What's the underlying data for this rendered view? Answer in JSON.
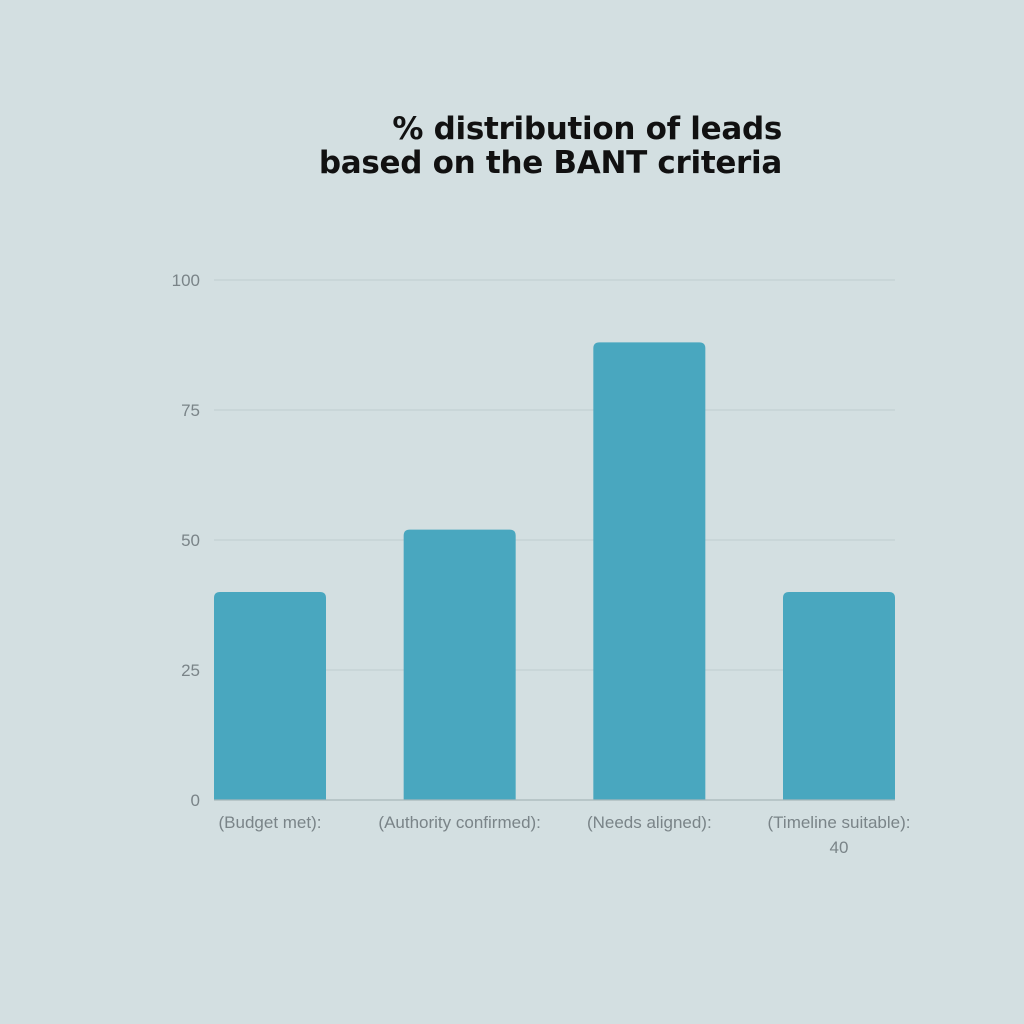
{
  "chart_data": {
    "type": "bar",
    "title_lines": [
      "% distribution of leads",
      "based on the BANT criteria"
    ],
    "categories": [
      [
        "(Budget met):"
      ],
      [
        "(Authority confirmed):"
      ],
      [
        "(Needs aligned):"
      ],
      [
        "(Timeline suitable):",
        "40"
      ]
    ],
    "values": [
      40,
      52,
      88,
      40
    ],
    "ylim": [
      0,
      100
    ],
    "yticks": [
      0,
      25,
      50,
      75,
      100
    ],
    "grid": true,
    "colors": {
      "background": "#d3dfe1",
      "bar": "#49a7bf",
      "grid": "#bfcdd0",
      "axis": "#a9b6b9",
      "tick_text": "#7a8488",
      "title": "#111111"
    }
  }
}
